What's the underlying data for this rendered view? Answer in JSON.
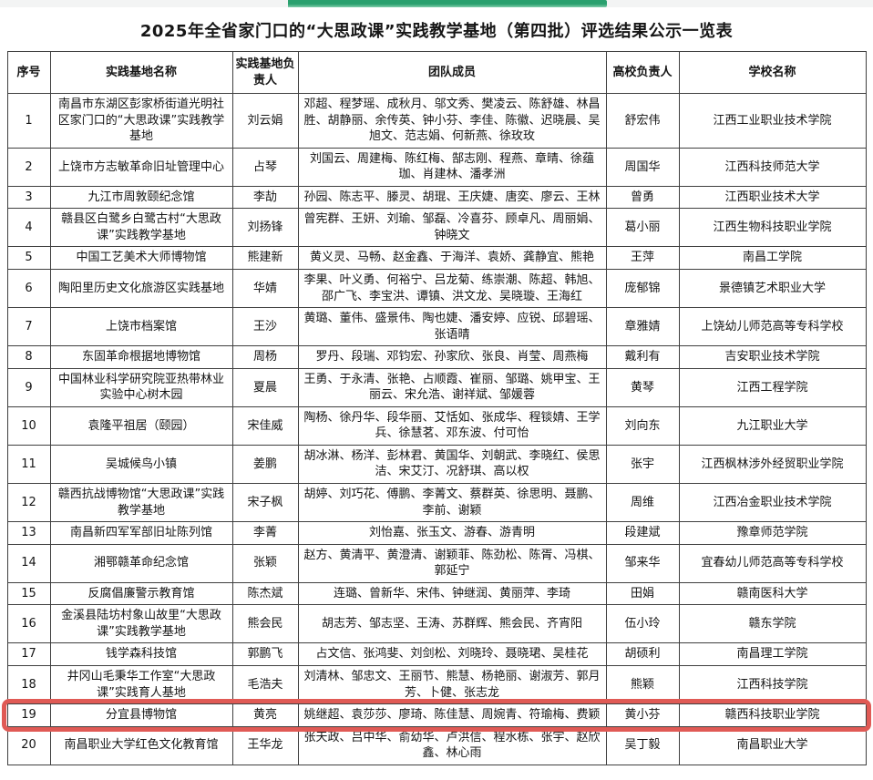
{
  "title": "2025年全省家门口的“大思政课”实践教学基地（第四批）评选结果公示一览表",
  "progress_bar": {
    "fill_color": "#2aa06e",
    "track_color": "#f3f4f4"
  },
  "colors": {
    "highlight_border": "#e05a55",
    "table_border": "#3f3f3f"
  },
  "table": {
    "columns": [
      "序号",
      "实践基地名称",
      "实践基地负责人",
      "团队成员",
      "高校负责人",
      "学校名称"
    ],
    "highlight_row_no": "19",
    "rows": [
      {
        "no": "1",
        "base": "南昌市东湖区彭家桥街道光明社区家门口的“大思政课”实践教学基地",
        "base_leader": "刘云娟",
        "team": "邓超、程梦瑶、成秋月、邬文秀、樊凌云、陈舒雄、林昌胜、胡静丽、余传英、钟小芬、李佳、陈徽、迟晓晨、吴旭文、范志娟、何新燕、徐玫玫",
        "uni_leader": "舒宏伟",
        "school": "江西工业职业技术学院"
      },
      {
        "no": "2",
        "base": "上饶市方志敏革命旧址管理中心",
        "base_leader": "占琴",
        "team": "刘国云、周建梅、陈红梅、郜志刚、程燕、章晴、徐蕴珈、肖建林、潘孝洲",
        "uni_leader": "周国华",
        "school": "江西科技师范大学"
      },
      {
        "no": "3",
        "base": "九江市周敦颐纪念馆",
        "base_leader": "李劼",
        "team": "孙园、陈志平、滕灵、胡琨、王庆婕、唐奕、廖云、王林",
        "uni_leader": "曾勇",
        "school": "江西职业技术大学"
      },
      {
        "no": "4",
        "base": "赣县区白鹭乡白鹭古村“大思政课”实践教学基地",
        "base_leader": "刘扬锋",
        "team": "曾宪群、王妍、刘瑜、邹磊、冷喜芬、顾卓凡、周丽娟、钟晓文",
        "uni_leader": "葛小丽",
        "school": "江西生物科技职业学院"
      },
      {
        "no": "5",
        "base": "中国工艺美术大师博物馆",
        "base_leader": "熊建新",
        "team": "黄义灵、马畅、赵金鑫、于海洋、袁娇、龚静宜、熊艳",
        "uni_leader": "王萍",
        "school": "南昌工学院"
      },
      {
        "no": "6",
        "base": "陶阳里历史文化旅游区实践基地",
        "base_leader": "华婧",
        "team": "李果、叶义勇、何裕宁、吕龙菊、练崇潮、陈超、韩旭、邵广飞、李宝洪、谭镇、洪文龙、吴晓璇、王海红",
        "uni_leader": "庞郁锦",
        "school": "景德镇艺术职业大学"
      },
      {
        "no": "7",
        "base": "上饶市档案馆",
        "base_leader": "王沙",
        "team": "黄璐、董伟、盛景伟、陶也婕、潘安婷、应锐、邱碧瑶、张语晴",
        "uni_leader": "章雅婧",
        "school": "上饶幼儿师范高等专科学校"
      },
      {
        "no": "8",
        "base": "东固革命根据地博物馆",
        "base_leader": "周杨",
        "team": "罗丹、段瑞、邓钧宏、孙家欣、张良、肖莹、周燕梅",
        "uni_leader": "戴利有",
        "school": "吉安职业技术学院"
      },
      {
        "no": "9",
        "base": "中国林业科学研究院亚热带林业实验中心树木园",
        "base_leader": "夏晨",
        "team": "王勇、于永清、张艳、占顺霞、崔丽、邹璐、姚甲宝、王丽云、宋允浩、谢祥斌、邹媛蓉",
        "uni_leader": "黄琴",
        "school": "江西工程学院"
      },
      {
        "no": "10",
        "base": "袁隆平祖居（颐园）",
        "base_leader": "宋佳威",
        "team": "陶杨、徐丹华、段华丽、艾恬如、张成华、程锬婧、王学兵、徐慧茗、邓东波、付可怡",
        "uni_leader": "刘向东",
        "school": "九江职业大学"
      },
      {
        "no": "11",
        "base": "吴城候鸟小镇",
        "base_leader": "姜鹏",
        "team": "胡冰淋、杨洋、彭林君、黄国华、刘朝武、李晓红、侯思洁、宋艾汀、况舒琪、高以权",
        "uni_leader": "张宇",
        "school": "江西枫林涉外经贸职业学院"
      },
      {
        "no": "12",
        "base": "赣西抗战博物馆“大思政课”实践教学基地",
        "base_leader": "宋子枫",
        "team": "胡婷、刘巧花、傅鹏、李菁文、蔡群英、徐思明、聂鹏、李前、谢颖",
        "uni_leader": "周维",
        "school": "江西冶金职业技术学院"
      },
      {
        "no": "13",
        "base": "南昌新四军军部旧址陈列馆",
        "base_leader": "李菁",
        "team": "刘怡嘉、张玉文、游春、游青明",
        "uni_leader": "段建斌",
        "school": "豫章师范学院"
      },
      {
        "no": "14",
        "base": "湘鄂赣革命纪念馆",
        "base_leader": "张颖",
        "team": "赵方、黄清平、黄澄清、谢颖菲、陈劲松、陈胥、冯棋、郭延宁",
        "uni_leader": "邹来华",
        "school": "宜春幼儿师范高等专科学校"
      },
      {
        "no": "15",
        "base": "反腐倡廉警示教育馆",
        "base_leader": "陈杰斌",
        "team": "连璐、曾新华、宋伟、钟继润、黄丽萍、李琦",
        "uni_leader": "田娟",
        "school": "赣南医科大学"
      },
      {
        "no": "16",
        "base": "金溪县陆坊村象山故里“大思政课”实践教学基地",
        "base_leader": "熊会民",
        "team": "胡志芳、邹志坚、王涛、苏群辉、熊会民、齐宵阳",
        "uni_leader": "伍小玲",
        "school": "赣东学院"
      },
      {
        "no": "17",
        "base": "钱学森科技馆",
        "base_leader": "郭鹏飞",
        "team": "占文信、张鸿斐、刘剑松、刘晓玲、聂晓珺、吴桂花",
        "uni_leader": "胡硕利",
        "school": "南昌理工学院"
      },
      {
        "no": "18",
        "base": "井冈山毛秉华工作室“大思政课”实践育人基地",
        "base_leader": "毛浩夫",
        "team": "刘清林、邹忠文、王丽节、熊慧、杨艳丽、谢淑芳、郭月芳、卜健、张志龙",
        "uni_leader": "熊颖",
        "school": "江西科技学院"
      },
      {
        "no": "19",
        "base": "分宜县博物馆",
        "base_leader": "黄亮",
        "team": "姚继超、袁莎莎、廖琦、陈佳慧、周婉青、符瑜梅、费颖",
        "uni_leader": "黄小芬",
        "school": "赣西科技职业学院"
      },
      {
        "no": "20",
        "base": "南昌职业大学红色文化教育馆",
        "base_leader": "王华龙",
        "team": "张天政、吕中华、俞幼华、卢洪信、程水栋、张宇、赵欣鑫、林心雨",
        "uni_leader": "吴丁毅",
        "school": "南昌职业大学"
      }
    ]
  }
}
